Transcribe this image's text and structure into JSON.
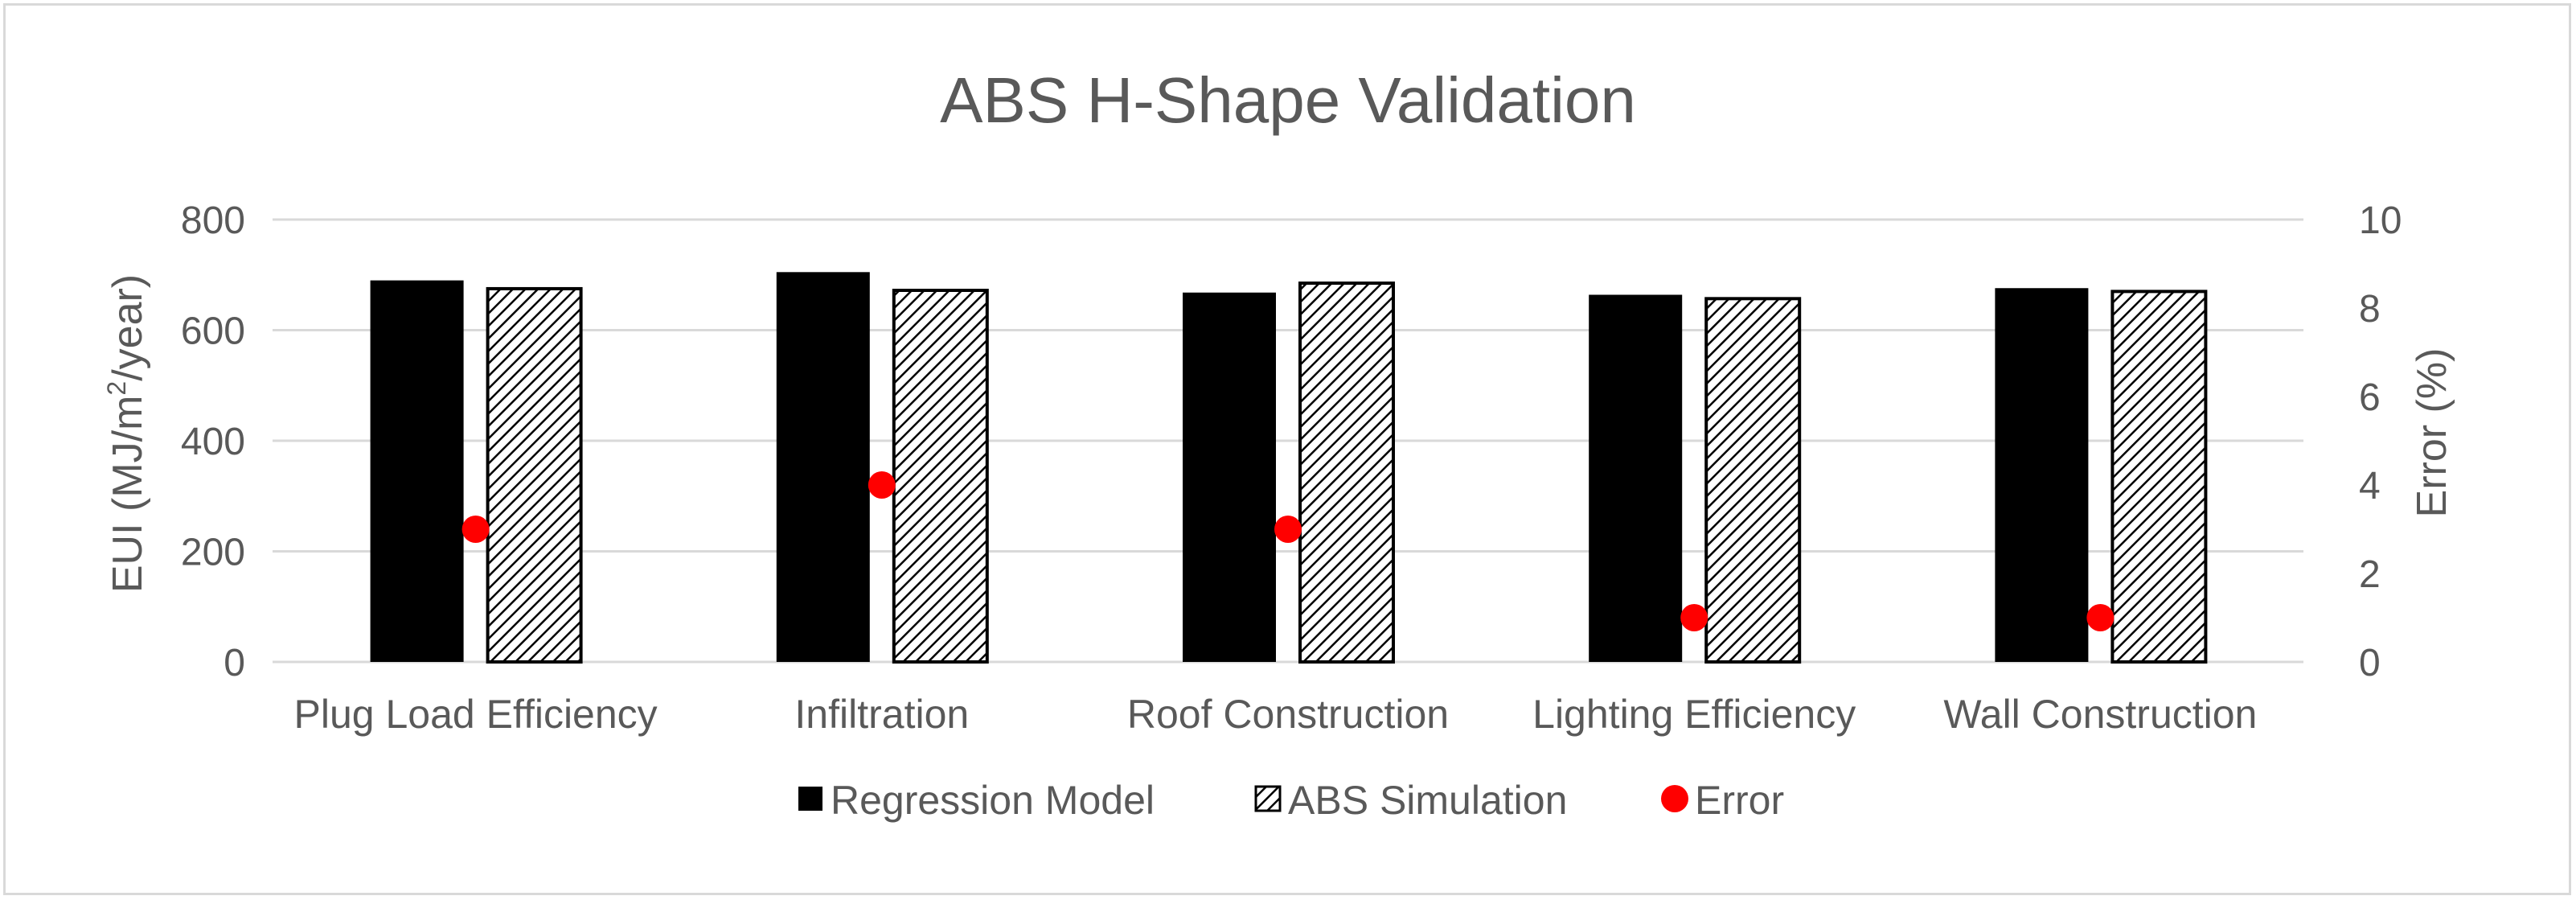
{
  "chart_data": {
    "type": "bar",
    "title": "ABS H-Shape Validation",
    "categories": [
      "Plug Load Efficiency",
      "Infiltration",
      "Roof Construction",
      "Lighting Efficiency",
      "Wall Construction"
    ],
    "series": [
      {
        "name": "Regression Model",
        "axis": "left",
        "style": "solid-black",
        "values": [
          690,
          705,
          668,
          664,
          676
        ]
      },
      {
        "name": "ABS Simulation",
        "axis": "left",
        "style": "hatched",
        "values": [
          675,
          672,
          685,
          657,
          670
        ]
      },
      {
        "name": "Error",
        "axis": "right",
        "style": "red-dot",
        "values": [
          3,
          4,
          3,
          1,
          1
        ]
      }
    ],
    "ylabel": "EUI (MJ/m²/year)",
    "ylabel_parts": {
      "main": "EUI (MJ/m",
      "sup": "2",
      "tail": "/year)"
    },
    "y2label": "Error (%)",
    "ylim": [
      0,
      800
    ],
    "y2lim": [
      0,
      10
    ],
    "yticks": [
      "0",
      "200",
      "400",
      "600",
      "800"
    ],
    "y2ticks": [
      "0",
      "2",
      "4",
      "6",
      "8",
      "10"
    ],
    "grid": true,
    "legend_position": "bottom",
    "colors": {
      "bar": "#000000",
      "dot": "#ff0000",
      "grid": "#d9d9d9",
      "text": "#595959"
    }
  }
}
